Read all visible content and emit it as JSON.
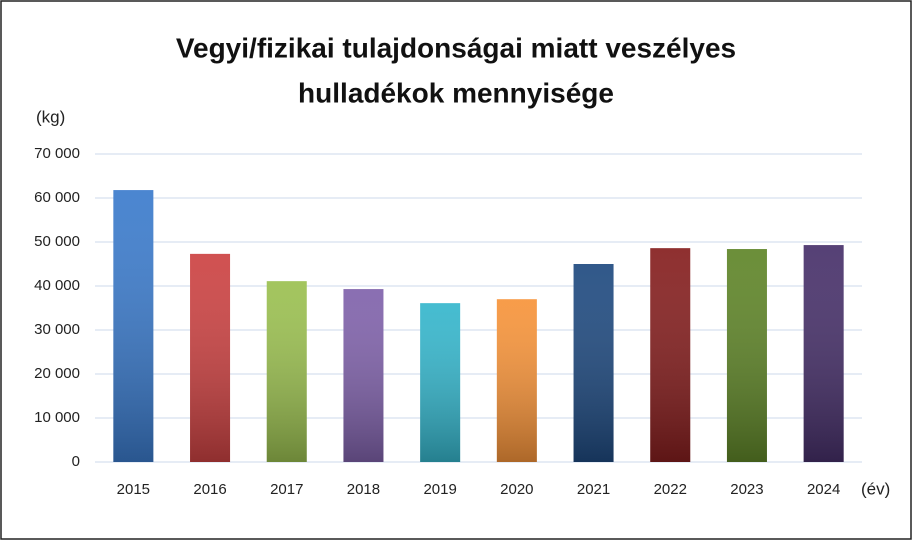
{
  "chart_data": {
    "type": "bar",
    "title": [
      "Vegyi/fizikai tulajdonságai miatt veszélyes",
      "hulladékok mennyisége"
    ],
    "y_label": "(kg)",
    "x_label": "(év)",
    "categories": [
      "2015",
      "2016",
      "2017",
      "2018",
      "2019",
      "2020",
      "2021",
      "2022",
      "2023",
      "2024"
    ],
    "values": [
      61800,
      47300,
      41100,
      39300,
      36100,
      37000,
      45000,
      48600,
      48400,
      49300
    ],
    "colors": [
      "#3b7bcc",
      "#cc4242",
      "#9bc050",
      "#8062ab",
      "#35b6cc",
      "#f7943a",
      "#1f4a80",
      "#851e1e",
      "#5f8528",
      "#47306a"
    ],
    "ylim": [
      0,
      70000
    ],
    "yticks": [
      0,
      {
        "value": 10000,
        "label": "10 000"
      },
      {
        "value": 20000,
        "label": "20 000"
      },
      {
        "value": 30000,
        "label": "30 000"
      },
      {
        "value": 40000,
        "label": "40 000"
      },
      {
        "value": 50000,
        "label": "50 000"
      },
      {
        "value": 60000,
        "label": "60 000"
      },
      {
        "value": 70000,
        "label": "70 000"
      }
    ],
    "grid": true
  }
}
